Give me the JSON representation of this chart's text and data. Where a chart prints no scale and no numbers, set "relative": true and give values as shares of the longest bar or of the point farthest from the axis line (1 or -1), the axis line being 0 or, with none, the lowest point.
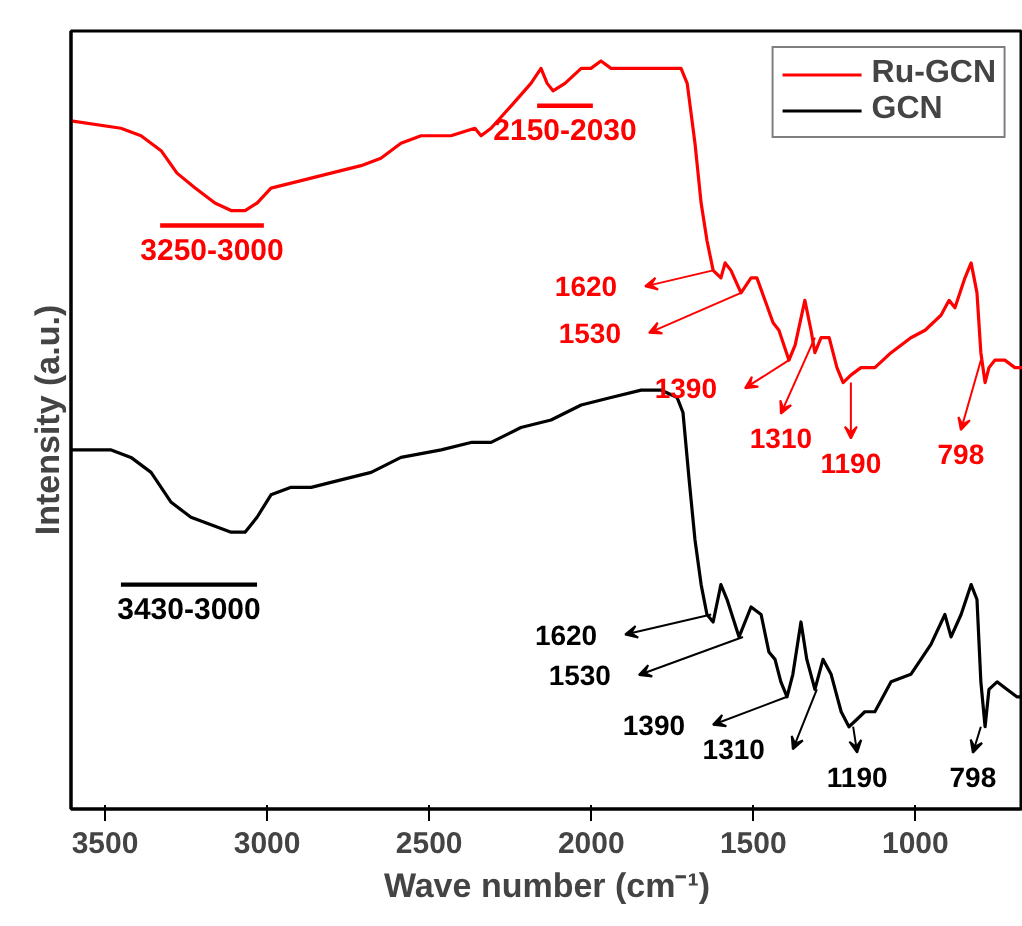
{
  "chart_data": {
    "type": "line",
    "relative": true,
    "xlabel": "Wave number (cm⁻¹)",
    "ylabel": "Intensity (a.u.)",
    "xlim": [
      3605,
      668
    ],
    "xticks": [
      3500,
      3000,
      2500,
      2000,
      1500,
      1000
    ],
    "grid": false,
    "legend": "top right",
    "marker": "none",
    "line_style": "solid",
    "x": [
      3605,
      3451,
      3389,
      3327,
      3278,
      3222,
      3161,
      3111,
      3068,
      3031,
      2988,
      2895,
      2803,
      2710,
      2649,
      2587,
      2525,
      2433,
      2359,
      2340,
      2309,
      2247,
      2186,
      2155,
      2136,
      2118,
      2081,
      2031,
      2001,
      1970,
      1939,
      1846,
      1754,
      1723,
      1704,
      1680,
      1661,
      1643,
      1624,
      1600,
      1587,
      1569,
      1538,
      1507,
      1489,
      1464,
      1439,
      1421,
      1390,
      1371,
      1341,
      1322,
      1310,
      1291,
      1266,
      1242,
      1223,
      1199,
      1168,
      1125,
      1075,
      1014,
      970,
      921,
      896,
      878,
      847,
      828,
      810,
      798,
      785,
      773,
      755,
      724,
      693,
      668
    ],
    "series": [
      {
        "name": "Ru-GCN",
        "color": "#ff0000",
        "values": [
          0.92,
          0.91,
          0.9,
          0.88,
          0.85,
          0.83,
          0.81,
          0.8,
          0.8,
          0.81,
          0.83,
          0.84,
          0.85,
          0.86,
          0.87,
          0.89,
          0.9,
          0.9,
          0.91,
          0.9,
          0.91,
          0.94,
          0.97,
          0.99,
          0.97,
          0.96,
          0.97,
          0.99,
          0.99,
          1.0,
          0.99,
          0.99,
          0.99,
          0.99,
          0.97,
          0.89,
          0.81,
          0.76,
          0.72,
          0.71,
          0.73,
          0.72,
          0.69,
          0.71,
          0.71,
          0.68,
          0.65,
          0.64,
          0.6,
          0.62,
          0.68,
          0.64,
          0.61,
          0.63,
          0.63,
          0.59,
          0.57,
          0.58,
          0.59,
          0.59,
          0.61,
          0.63,
          0.64,
          0.66,
          0.68,
          0.67,
          0.71,
          0.73,
          0.69,
          0.61,
          0.57,
          0.59,
          0.6,
          0.6,
          0.59,
          0.59
        ]
      },
      {
        "name": "3250-3000",
        "color": "#ff0000",
        "x": [
          3330,
          3010
        ],
        "values": [
          0.78,
          0.78
        ]
      },
      {
        "name": "2150-2030",
        "color": "#ff0000",
        "x": [
          2167,
          1995
        ],
        "values": [
          0.94,
          0.94
        ]
      },
      {
        "name": "3430-3000",
        "color": "#000000",
        "x": [
          3451,
          3031
        ],
        "values": [
          0.3,
          0.3
        ]
      },
      {
        "name": "GCN",
        "color": "#000000",
        "x": [
          3605,
          3574,
          3481,
          3420,
          3358,
          3296,
          3235,
          3173,
          3111,
          3068,
          3031,
          2988,
          2926,
          2864,
          2772,
          2679,
          2587,
          2463,
          2371,
          2309,
          2217,
          2124,
          2031,
          1939,
          1846,
          1785,
          1735,
          1717,
          1698,
          1680,
          1661,
          1643,
          1624,
          1600,
          1581,
          1544,
          1507,
          1476,
          1452,
          1433,
          1415,
          1396,
          1378,
          1353,
          1335,
          1310,
          1285,
          1260,
          1229,
          1205,
          1180,
          1156,
          1125,
          1075,
          1014,
          952,
          909,
          890,
          859,
          828,
          810,
          798,
          785,
          773,
          748,
          718,
          687,
          668
        ],
        "values": [
          0.48,
          0.48,
          0.48,
          0.47,
          0.45,
          0.41,
          0.39,
          0.38,
          0.37,
          0.37,
          0.39,
          0.42,
          0.43,
          0.43,
          0.44,
          0.45,
          0.47,
          0.48,
          0.49,
          0.49,
          0.51,
          0.52,
          0.54,
          0.55,
          0.56,
          0.56,
          0.55,
          0.53,
          0.44,
          0.36,
          0.3,
          0.26,
          0.25,
          0.3,
          0.28,
          0.23,
          0.27,
          0.26,
          0.21,
          0.2,
          0.17,
          0.15,
          0.18,
          0.25,
          0.2,
          0.16,
          0.2,
          0.18,
          0.13,
          0.11,
          0.12,
          0.13,
          0.13,
          0.17,
          0.18,
          0.22,
          0.26,
          0.23,
          0.26,
          0.3,
          0.28,
          0.17,
          0.11,
          0.16,
          0.17,
          0.16,
          0.15,
          0.15
        ]
      }
    ],
    "annotations": [
      {
        "text": "1620",
        "x": 1624,
        "y": 0.72
      },
      {
        "text": "1530",
        "x": 1538,
        "y": 0.69
      },
      {
        "text": "1390",
        "x": 1390,
        "y": 0.6
      },
      {
        "text": "1310",
        "x": 1310,
        "y": 0.63
      },
      {
        "text": "1190",
        "x": 1199,
        "y": 0.57
      },
      {
        "text": "798",
        "x": 798,
        "y": 0.6
      },
      {
        "text": "1620",
        "x": 1630,
        "y": 0.26
      },
      {
        "text": "1530",
        "x": 1532,
        "y": 0.23
      },
      {
        "text": "1390",
        "x": 1396,
        "y": 0.15
      },
      {
        "text": "1310",
        "x": 1304,
        "y": 0.16
      },
      {
        "text": "1190",
        "x": 1192,
        "y": 0.11
      },
      {
        "text": "798",
        "x": 798,
        "y": 0.11
      }
    ]
  }
}
